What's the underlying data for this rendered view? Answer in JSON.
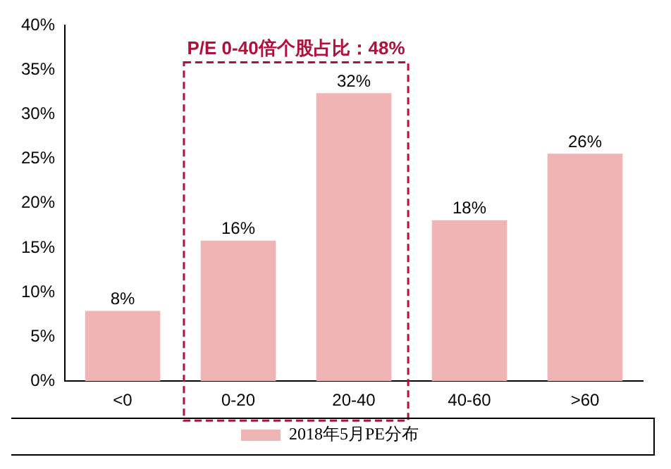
{
  "chart_data": {
    "type": "bar",
    "categories": [
      "<0",
      "0-20",
      "20-40",
      "40-60",
      ">60"
    ],
    "series": [
      {
        "name": "2018年5月PE分布",
        "color": "#f0b4b4",
        "values": [
          7.9,
          15.8,
          32.4,
          18.1,
          25.6
        ],
        "value_labels": [
          "8%",
          "16%",
          "32%",
          "18%",
          "26%"
        ]
      }
    ],
    "ylim": [
      0,
      40
    ],
    "yticks": [
      {
        "value": 0,
        "label": "0%"
      },
      {
        "value": 5,
        "label": "5%"
      },
      {
        "value": 10,
        "label": "10%"
      },
      {
        "value": 15,
        "label": "15%"
      },
      {
        "value": 20,
        "label": "20%"
      },
      {
        "value": 25,
        "label": "25%"
      },
      {
        "value": 30,
        "label": "30%"
      },
      {
        "value": 35,
        "label": "35%"
      },
      {
        "value": 40,
        "label": "40%"
      }
    ],
    "grid": false,
    "legend": "bottom",
    "annotations": [
      "P/E 0-40倍个股占比：48%"
    ]
  }
}
